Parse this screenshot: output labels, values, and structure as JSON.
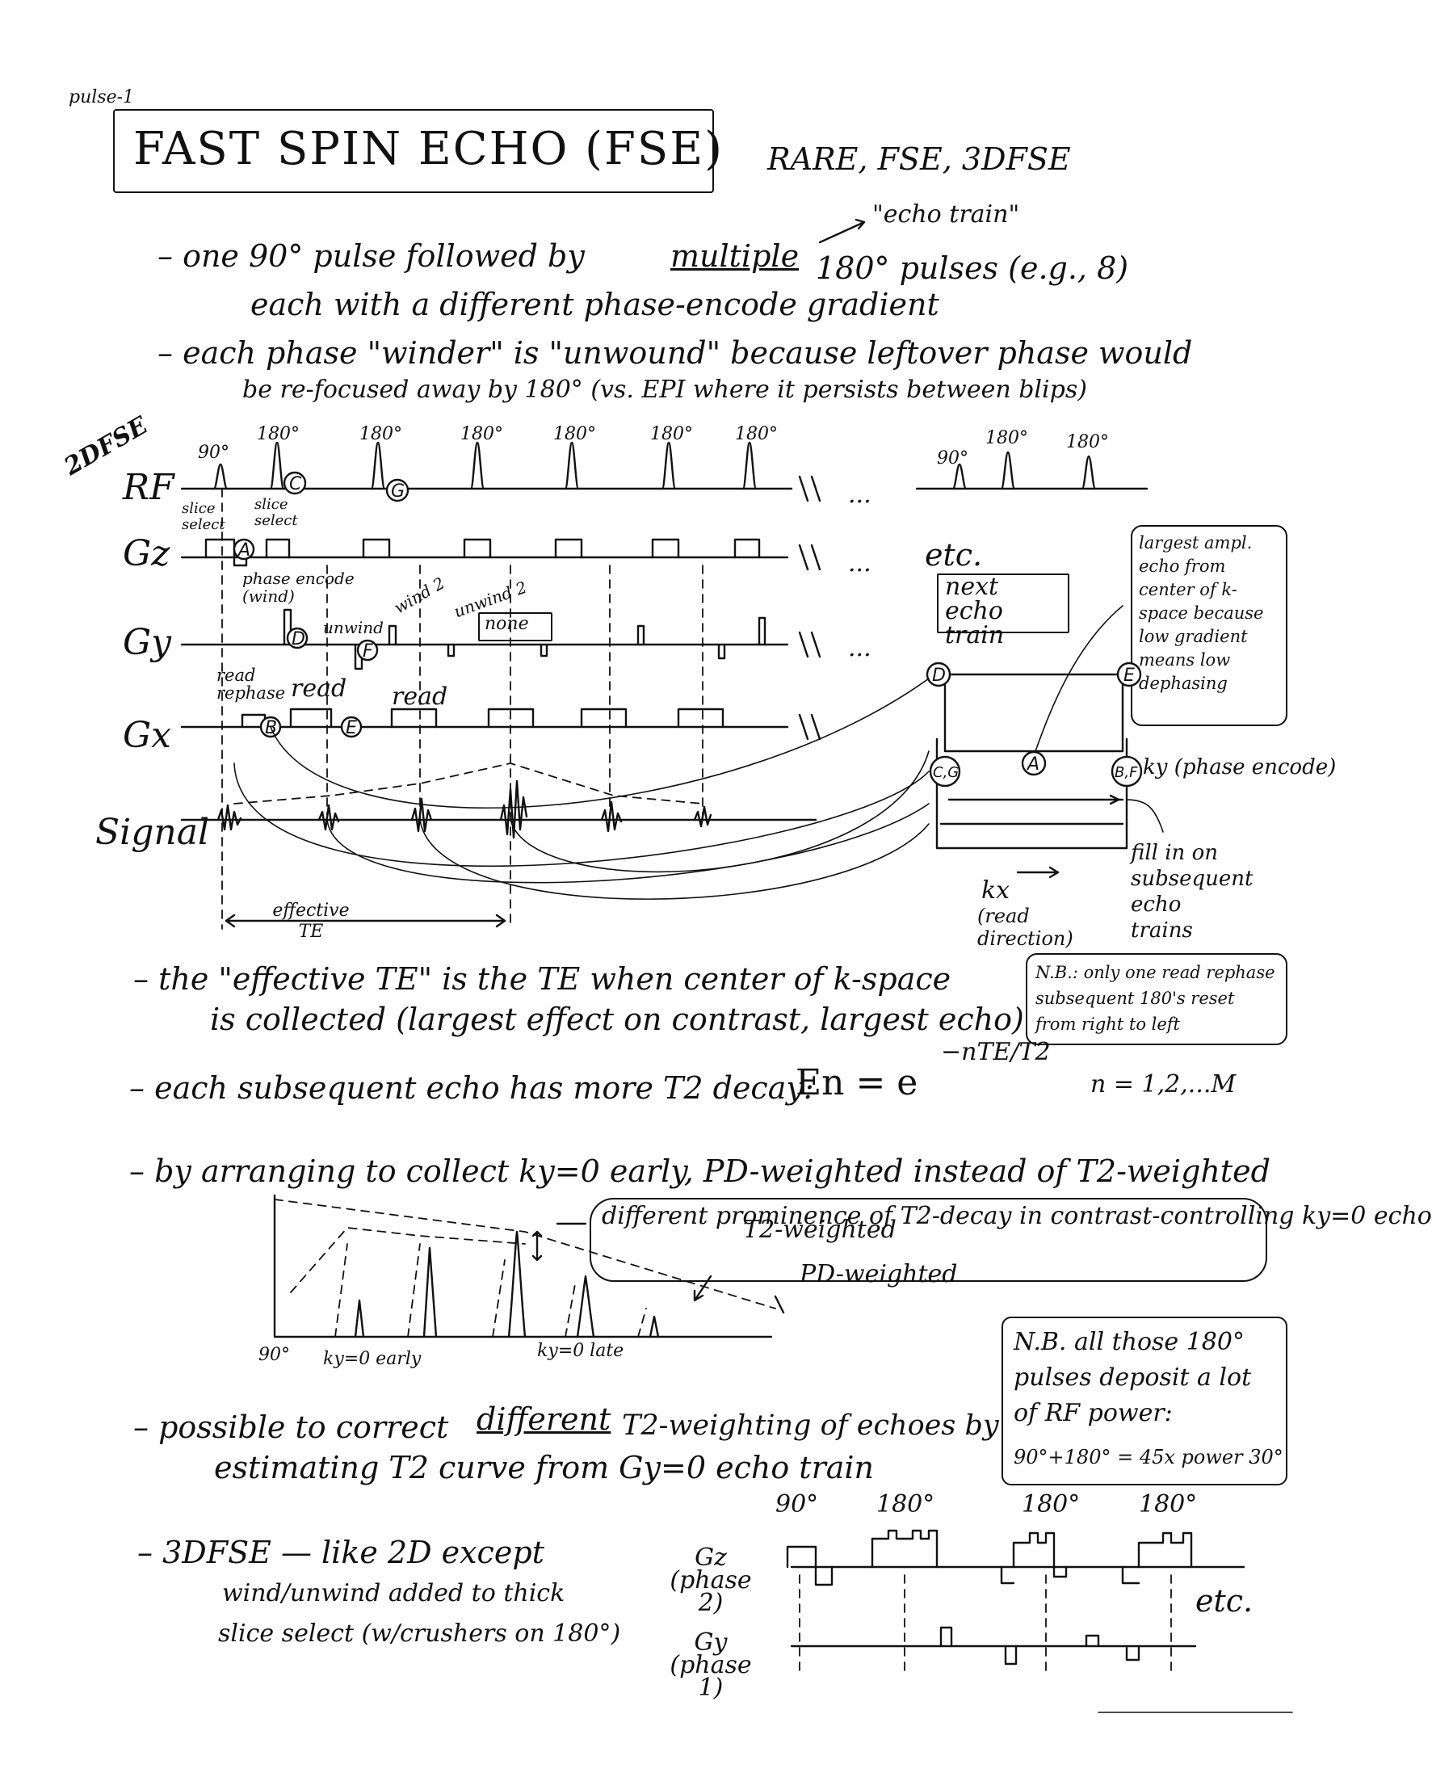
{
  "page": {
    "header_tag": "pulse-1",
    "title": "FAST SPIN ECHO (FSE)",
    "subtitle": "RARE, FSE, 3DFSE",
    "label_2dfse": "2DFSE"
  },
  "intro": {
    "echo_train_note": "\"echo train\"",
    "bullet1_line1": "– one 90° pulse followed by",
    "bullet1_multiple": "multiple",
    "bullet1_line1_end": "180° pulses (e.g., 8)",
    "bullet1_line2": "each with a different phase-encode gradient",
    "bullet2_line1": "– each phase \"winder\" is \"unwound\" because leftover phase would",
    "bullet2_line2": "be re-focused away by 180° (vs. EPI where it persists between blips)"
  },
  "diagram": {
    "row_labels": [
      "RF",
      "Gz",
      "Gy",
      "Gx",
      "Signal"
    ],
    "flip_angles": [
      "90°",
      "180°",
      "180°",
      "180°",
      "180°",
      "180°",
      "180°"
    ],
    "next_train_angles": [
      "90°",
      "180°",
      "180°"
    ],
    "ellipsis": "...",
    "etc": "etc.",
    "next_echo_train": "next echo train",
    "slice_select_1": "slice select",
    "slice_select_2": "slice select",
    "phase_encode_wind": "phase encode (wind)",
    "unwind": "unwind",
    "wind2": "wind 2",
    "unwind2": "unwind 2",
    "none": "none",
    "read_rephase": "read rephase",
    "read1": "read",
    "read2": "read",
    "effective_te": "effective TE",
    "markers": [
      "A",
      "B",
      "C",
      "D",
      "E",
      "F",
      "G"
    ]
  },
  "kspace": {
    "largest_ampl_note": "largest ampl. echo from center of k-space because low gradient means low dephasing",
    "corner_d": "D",
    "corner_e": "E",
    "center_a": "A",
    "left_cg": "C,G",
    "right_bf": "B,F",
    "ky_label": "ky (phase encode)",
    "kx_label": "kx",
    "kx_sub": "(read direction)",
    "fill_note": "fill in on subsequent echo trains"
  },
  "notes": {
    "effective_te_line1": "– the \"effective TE\" is the TE when center of k-space",
    "effective_te_line2": "is collected (largest effect on contrast, largest echo)",
    "nb_read_rephase": "N.B.: only one read rephase subsequent 180's reset from right to left",
    "decay_line": "– each subsequent echo has more T2 decay:",
    "decay_formula": "En = e",
    "decay_exponent": "−nTE/T2",
    "decay_n": "n = 1,2,...M",
    "pd_line": "– by arranging to collect ky=0 early, PD-weighted instead of T2-weighted"
  },
  "prominence": {
    "note": "different prominence of T2-decay in contrast-controlling ky=0 echo",
    "t2_weighted": "T2-weighted",
    "pd_weighted": "PD-weighted",
    "x90": "90°",
    "ky0_early": "ky=0 early",
    "ky0_late": "ky=0 late"
  },
  "bottom": {
    "correct_line1": "– possible to correct",
    "correct_different": "different",
    "correct_line1_end": "T2-weighting of echoes by",
    "correct_line2": "estimating T2 curve from Gy=0 echo train",
    "nb_power": "N.B. all those 180° pulses deposit a lot of RF power:",
    "power_eq": "90°+180° = 45x power 30°",
    "fse3d_line1": "– 3DFSE — like 2D except",
    "fse3d_line2": "wind/unwind added to thick",
    "fse3d_line3": "slice select (w/crushers on 180°)",
    "gz_label": "Gz (phase 2)",
    "gy_label": "Gy (phase 1)",
    "angles": [
      "90°",
      "180°",
      "180°",
      "180°"
    ],
    "etc": "etc."
  }
}
